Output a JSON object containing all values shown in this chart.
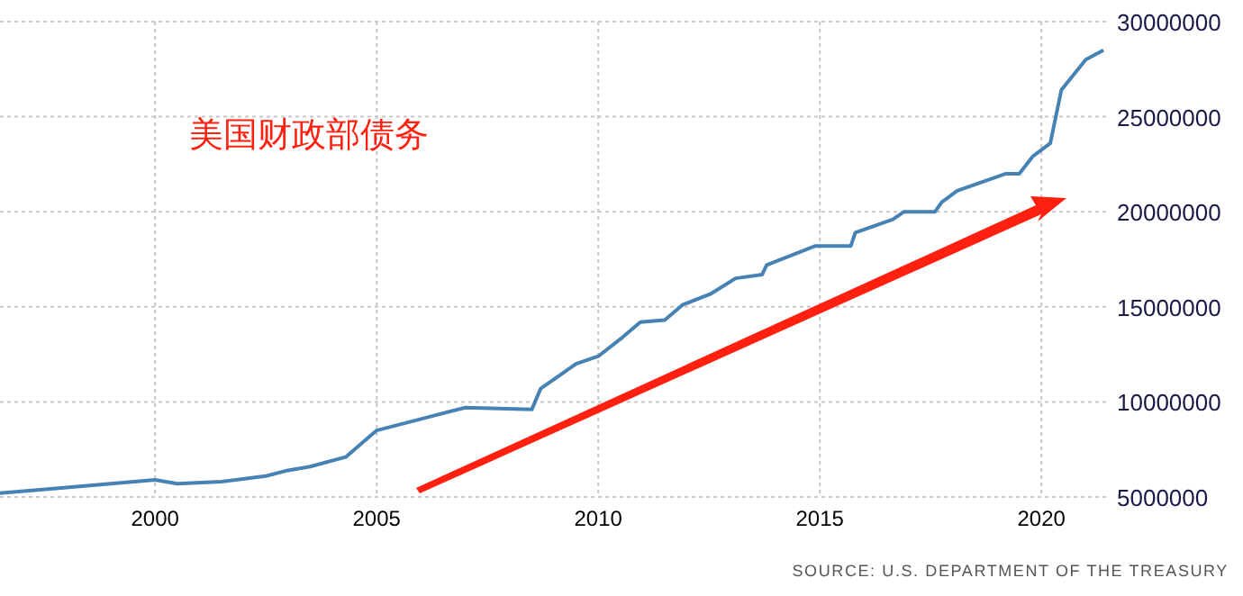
{
  "chart_data": {
    "type": "line",
    "title": "美国财政部债务",
    "annotations": [
      "SOURCE: U.S. DEPARTMENT OF THE TREASURY"
    ],
    "x": [
      1996.5,
      1998,
      2000,
      2000.5,
      2001.5,
      2002.5,
      2003,
      2003.5,
      2004.3,
      2005,
      2006,
      2007,
      2008.5,
      2008.7,
      2009.5,
      2010,
      2010.55,
      2010.95,
      2011.5,
      2011.9,
      2012.55,
      2013.1,
      2013.7,
      2013.8,
      2014.9,
      2015.7,
      2015.8,
      2016.65,
      2016.9,
      2017.6,
      2017.75,
      2018.1,
      2019.2,
      2019.5,
      2019.8,
      2020.2,
      2020.45,
      2021,
      2021.4
    ],
    "series": [
      {
        "color": "#4682b4",
        "values": [
          5200000,
          5500000,
          5900000,
          5700000,
          5800000,
          6100000,
          6400000,
          6600000,
          7100000,
          8500000,
          9100000,
          9700000,
          9600000,
          10700000,
          12000000,
          12400000,
          13400000,
          14200000,
          14300000,
          15100000,
          15700000,
          16500000,
          16700000,
          17200000,
          18200000,
          18200000,
          18900000,
          19600000,
          20000000,
          20000000,
          20500000,
          21100000,
          22000000,
          22000000,
          22900000,
          23600000,
          26400000,
          28000000,
          28500000
        ]
      }
    ],
    "xlim": [
      1996.5,
      2021.5
    ],
    "xticks": [
      2000,
      2005,
      2010,
      2015,
      2020
    ],
    "ylim": [
      5000000,
      30000000
    ],
    "yticks": [
      5000000,
      10000000,
      15000000,
      20000000,
      25000000,
      30000000
    ],
    "grid": true
  }
}
